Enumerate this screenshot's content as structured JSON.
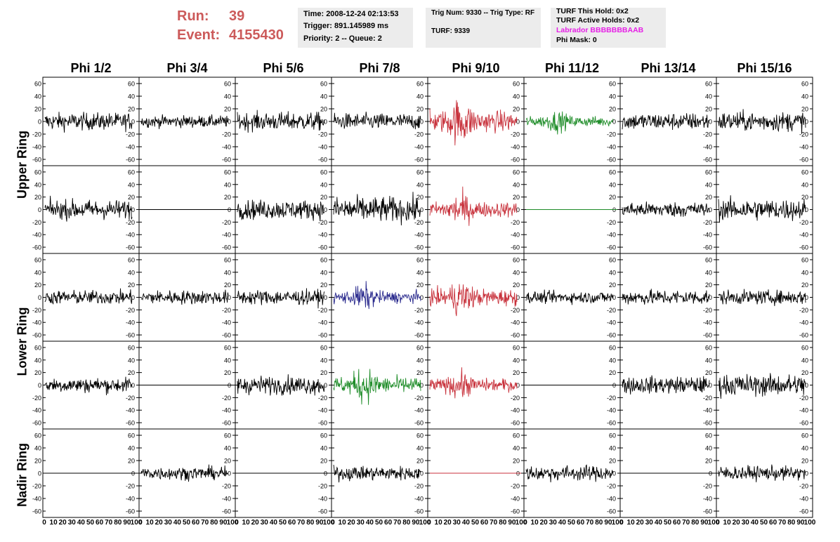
{
  "header": {
    "run_label": "Run:",
    "run_value": "39",
    "event_label": "Event:",
    "event_value": "4155430"
  },
  "info1": {
    "time": "Time: 2008-12-24 02:13:53",
    "trigger": "Trigger: 891.145989 ms",
    "priority": "Priority: 2 -- Queue: 2"
  },
  "info2": {
    "trig": "Trig Num: 9330 -- Trig Type: RF",
    "turf": "TURF: 9339"
  },
  "info3": {
    "this_hold": "TURF This Hold: 0x2",
    "active_holds": "TURF Active Holds: 0x2",
    "labrador": "Labrador BBBBBBBAAB",
    "phi_mask": "Phi Mask: 0"
  },
  "colors": {
    "run_text": "#cc5a5a",
    "labrador": "#e61ee6",
    "black": "#000000",
    "red": "#c8323c",
    "green": "#1e8c28",
    "blue": "#28288c",
    "info_bg": "#ececec"
  },
  "phi_headers": [
    "Phi 1/2",
    "Phi 3/4",
    "Phi 5/6",
    "Phi 7/8",
    "Phi 9/10",
    "Phi 11/12",
    "Phi 13/14",
    "Phi 15/16"
  ],
  "ring_labels": [
    {
      "text": "Upper Ring"
    },
    {
      "text": "Lower Ring"
    },
    {
      "text": "Nadir Ring"
    }
  ],
  "y_ticks": [
    "60",
    "40",
    "20",
    "0",
    "-20",
    "-40",
    "-60"
  ],
  "y_tick_values": [
    60,
    40,
    20,
    0,
    -20,
    -40,
    -60
  ],
  "y_range": [
    -70,
    70
  ],
  "x_range": [
    0,
    100
  ],
  "x_tick_labels": [
    "0",
    "10",
    "20",
    "30",
    "40",
    "50",
    "60",
    "70",
    "80",
    "90",
    "100"
  ],
  "waveforms": {
    "rows": [
      [
        {
          "color": "black",
          "amp": 16,
          "flat": false
        },
        {
          "color": "black",
          "amp": 11,
          "flat": false
        },
        {
          "color": "black",
          "amp": 17,
          "flat": false
        },
        {
          "color": "black",
          "amp": 15,
          "flat": false
        },
        {
          "color": "red",
          "amp": 28,
          "flat": false
        },
        {
          "color": "green",
          "amp": 13,
          "flat": false
        },
        {
          "color": "black",
          "amp": 16,
          "flat": false
        },
        {
          "color": "black",
          "amp": 18,
          "flat": false
        }
      ],
      [
        {
          "color": "black",
          "amp": 18,
          "flat": false
        },
        {
          "color": "black",
          "amp": 0,
          "flat": true
        },
        {
          "color": "black",
          "amp": 18,
          "flat": false
        },
        {
          "color": "black",
          "amp": 24,
          "flat": false
        },
        {
          "color": "red",
          "amp": 20,
          "flat": false
        },
        {
          "color": "green",
          "amp": 0,
          "flat": true
        },
        {
          "color": "black",
          "amp": 14,
          "flat": false
        },
        {
          "color": "black",
          "amp": 20,
          "flat": false
        }
      ],
      [
        {
          "color": "black",
          "amp": 13,
          "flat": false
        },
        {
          "color": "black",
          "amp": 13,
          "flat": false
        },
        {
          "color": "black",
          "amp": 14,
          "flat": false
        },
        {
          "color": "blue",
          "amp": 16,
          "flat": false
        },
        {
          "color": "red",
          "amp": 22,
          "flat": false
        },
        {
          "color": "black",
          "amp": 11,
          "flat": false
        },
        {
          "color": "black",
          "amp": 14,
          "flat": false
        },
        {
          "color": "black",
          "amp": 13,
          "flat": false
        }
      ],
      [
        {
          "color": "black",
          "amp": 14,
          "flat": false
        },
        {
          "color": "black",
          "amp": 0,
          "flat": true
        },
        {
          "color": "black",
          "amp": 17,
          "flat": false
        },
        {
          "color": "green",
          "amp": 22,
          "flat": false
        },
        {
          "color": "red",
          "amp": 17,
          "flat": false
        },
        {
          "color": "black",
          "amp": 0,
          "flat": true
        },
        {
          "color": "black",
          "amp": 16,
          "flat": false
        },
        {
          "color": "black",
          "amp": 20,
          "flat": false
        }
      ],
      [
        {
          "color": "black",
          "amp": 0,
          "flat": true
        },
        {
          "color": "black",
          "amp": 12,
          "flat": false
        },
        {
          "color": "black",
          "amp": 0,
          "flat": true
        },
        {
          "color": "black",
          "amp": 13,
          "flat": false
        },
        {
          "color": "red",
          "amp": 0,
          "flat": true
        },
        {
          "color": "black",
          "amp": 14,
          "flat": false
        },
        {
          "color": "black",
          "amp": 0,
          "flat": true
        },
        {
          "color": "black",
          "amp": 13,
          "flat": false
        }
      ]
    ]
  }
}
